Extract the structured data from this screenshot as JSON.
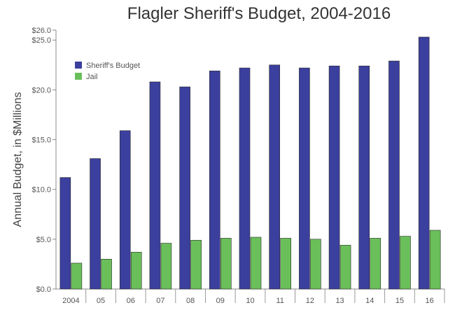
{
  "chart_data": {
    "type": "bar",
    "title": "Flagler Sheriff's Budget, 2004-2016",
    "xlabel": "",
    "ylabel": "Annual Budget, in $Millions",
    "categories": [
      "2004",
      "05",
      "06",
      "07",
      "08",
      "09",
      "10",
      "11",
      "12",
      "13",
      "14",
      "15",
      "16"
    ],
    "series": [
      {
        "name": "Sheriff's Budget",
        "color": "#3b3f9e",
        "values": [
          11.2,
          13.1,
          15.9,
          20.8,
          20.3,
          21.9,
          22.2,
          22.5,
          22.2,
          22.4,
          22.4,
          22.9,
          25.3
        ]
      },
      {
        "name": "Jail",
        "color": "#6abf5a",
        "values": [
          2.6,
          3.0,
          3.7,
          4.6,
          4.9,
          5.1,
          5.2,
          5.1,
          5.0,
          4.4,
          5.1,
          5.3,
          5.9
        ]
      }
    ],
    "ylim": [
      0,
      26
    ],
    "yticks": [
      {
        "value": 0,
        "label": "$0.0"
      },
      {
        "value": 5,
        "label": "$5.0"
      },
      {
        "value": 10,
        "label": "$10.0"
      },
      {
        "value": 15,
        "label": "$15.0"
      },
      {
        "value": 20,
        "label": "$20.0"
      },
      {
        "value": 25,
        "label": "$25.0"
      },
      {
        "value": 26,
        "label": "$26.0"
      }
    ],
    "legend_position": "top-left",
    "grid": false
  }
}
